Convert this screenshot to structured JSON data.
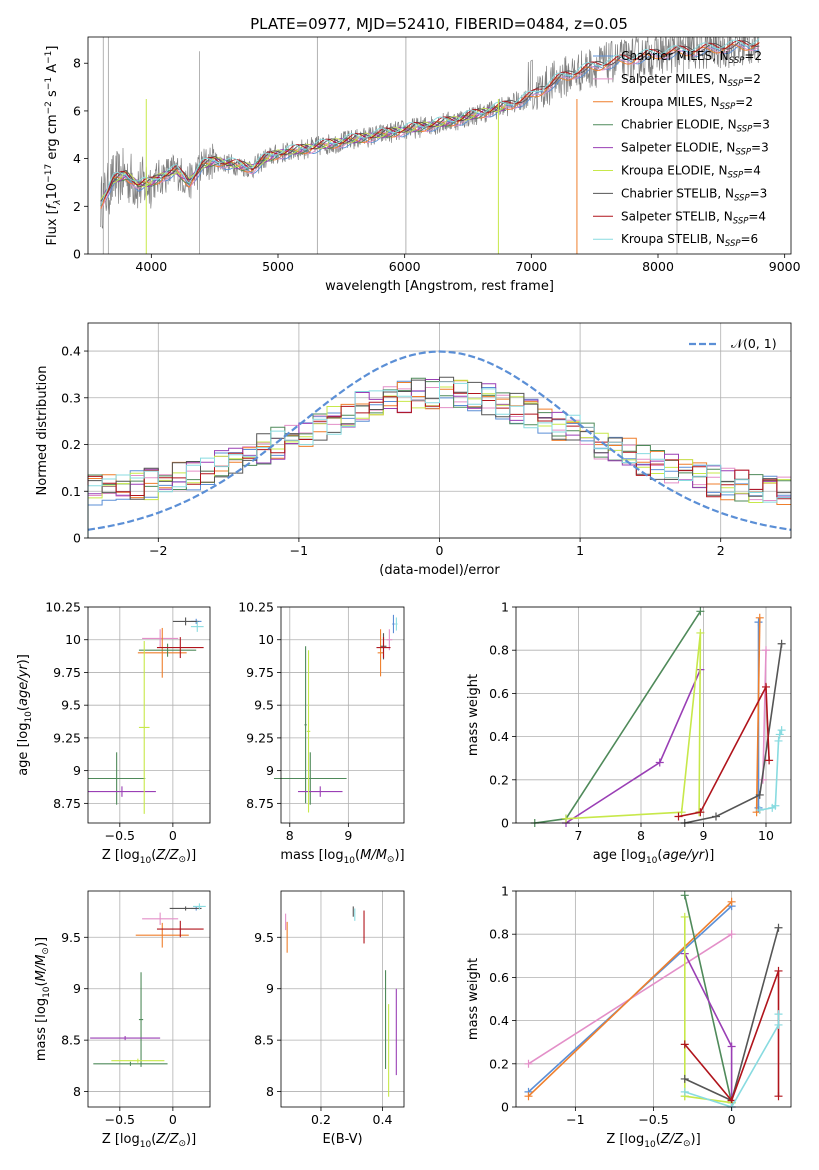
{
  "figure": {
    "title": "PLATE=0977, MJD=52410, FIBERID=0484, z=0.05",
    "colors": {
      "data_grey": "#808080",
      "chabrier_miles": "#5b8fd6",
      "salpeter_miles": "#e38fc8",
      "kroupa_miles": "#ef7f2c",
      "chabrier_elodie": "#4f8a5a",
      "salpeter_elodie": "#9a3fb5",
      "kroupa_elodie": "#c7e84a",
      "chabrier_stelib": "#555555",
      "salpeter_stelib": "#b0141c",
      "kroupa_stelib": "#88dbe0",
      "normal_curve": "#5b8fd6"
    }
  },
  "chart_data": [
    {
      "id": "spectrum",
      "type": "line",
      "xlabel": "wavelength [Angstrom, rest frame]",
      "ylabel": "Flux [f_λ 10^-17 erg cm^-2 s^-1 A^-1]",
      "xlim": [
        3500,
        9050
      ],
      "ylim": [
        0,
        9.1
      ],
      "xticks": [
        4000,
        5000,
        6000,
        7000,
        8000,
        9000
      ],
      "yticks": [
        0,
        2,
        4,
        6,
        8
      ],
      "grid": false,
      "legend_position": "right",
      "legend": [
        "Chabrier MILES, N_SSP=2",
        "Salpeter MILES, N_SSP=2",
        "Kroupa MILES, N_SSP=2",
        "Chabrier ELODIE, N_SSP=3",
        "Salpeter ELODIE, N_SSP=3",
        "Kroupa ELODIE, N_SSP=4",
        "Chabrier STELIB, N_SSP=3",
        "Salpeter STELIB, N_SSP=4",
        "Kroupa STELIB, N_SSP=6"
      ],
      "continuum_x": [
        3600,
        3700,
        3800,
        3900,
        4000,
        4100,
        4200,
        4300,
        4400,
        4500,
        4600,
        4700,
        4800,
        4900,
        5000,
        5200,
        5400,
        5600,
        5800,
        6000,
        6200,
        6400,
        6600,
        6800,
        7000,
        7200,
        7400,
        7600,
        7800,
        8000,
        8200,
        8400,
        8600,
        8800
      ],
      "continuum_y": [
        2.1,
        3.1,
        3.3,
        2.9,
        3.0,
        3.3,
        3.5,
        3.0,
        3.7,
        3.9,
        3.8,
        3.7,
        3.6,
        4.0,
        4.2,
        4.4,
        4.6,
        4.8,
        5.0,
        5.2,
        5.4,
        5.6,
        5.9,
        6.2,
        6.6,
        7.3,
        7.7,
        8.0,
        8.2,
        8.4,
        8.5,
        8.6,
        8.7,
        8.8
      ]
    },
    {
      "id": "residuals",
      "type": "histogram",
      "xlabel": "(data-model)/error",
      "ylabel": "Normed distribution",
      "xlim": [
        -2.5,
        2.5
      ],
      "ylim": [
        0,
        0.46
      ],
      "xticks": [
        -2,
        -1,
        0,
        1,
        2
      ],
      "yticks": [
        0.0,
        0.1,
        0.2,
        0.3,
        0.4
      ],
      "grid": true,
      "legend": [
        "𝒩(0, 1)"
      ],
      "legend_position": "top-right",
      "normal": {
        "mean": 0,
        "std": 1
      }
    },
    {
      "id": "age_vs_Z",
      "type": "errorbar",
      "xlabel": "Z [log10(Z/Z⊙)]",
      "ylabel": "age [log10(age/yr)]",
      "xlim": [
        -0.8,
        0.35
      ],
      "ylim": [
        8.6,
        10.25
      ],
      "xticks": [
        -0.5,
        0.0
      ],
      "yticks": [
        8.75,
        9.0,
        9.25,
        9.5,
        9.75,
        10.0,
        10.25
      ],
      "grid": true,
      "points": [
        {
          "series": "chabrier_miles",
          "x": 0.22,
          "y": 10.14,
          "xerr": 0.05,
          "yerr": 0.02
        },
        {
          "series": "salpeter_miles",
          "x": -0.12,
          "y": 10.01,
          "xerr": 0.17,
          "yerr": 0.07
        },
        {
          "series": "kroupa_miles",
          "x": -0.1,
          "y": 9.9,
          "xerr": 0.23,
          "yerr": 0.19
        },
        {
          "series": "chabrier_elodie",
          "x": -0.53,
          "y": 8.94,
          "xerr": 0.27,
          "yerr": 0.2
        },
        {
          "series": "chabrier_elodie_old",
          "x": -0.05,
          "y": 9.92,
          "xerr": 0.27,
          "yerr": 0.05
        },
        {
          "series": "salpeter_elodie",
          "x": -0.48,
          "y": 8.84,
          "xerr": 0.32,
          "yerr": 0.04
        },
        {
          "series": "kroupa_elodie",
          "x": -0.27,
          "y": 9.33,
          "xerr": 0.05,
          "yerr": 0.66
        },
        {
          "series": "chabrier_stelib",
          "x": 0.12,
          "y": 10.14,
          "xerr": 0.12,
          "yerr": 0.03
        },
        {
          "series": "salpeter_stelib",
          "x": 0.07,
          "y": 9.94,
          "xerr": 0.22,
          "yerr": 0.08
        },
        {
          "series": "kroupa_stelib",
          "x": 0.23,
          "y": 10.1,
          "xerr": 0.06,
          "yerr": 0.04
        }
      ]
    },
    {
      "id": "age_vs_mass",
      "type": "errorbar",
      "xlabel": "mass [log10(M/M⊙)]",
      "ylabel": "",
      "xlim": [
        7.85,
        9.95
      ],
      "ylim": [
        8.6,
        10.25
      ],
      "xticks": [
        8,
        9
      ],
      "yticks": [
        8.75,
        9.0,
        9.25,
        9.5,
        9.75,
        10.0,
        10.25
      ],
      "grid": true,
      "points": [
        {
          "series": "chabrier_miles",
          "x": 9.77,
          "y": 10.12,
          "xerr": 0.02,
          "yerr": 0.07
        },
        {
          "series": "salpeter_miles",
          "x": 9.7,
          "y": 10.0,
          "xerr": 0.05,
          "yerr": 0.08
        },
        {
          "series": "kroupa_miles",
          "x": 9.55,
          "y": 9.9,
          "xerr": 0.05,
          "yerr": 0.18
        },
        {
          "series": "chabrier_elodie",
          "x": 8.35,
          "y": 8.94,
          "xerr": 0.62,
          "yerr": 0.2
        },
        {
          "series": "chabrier_elodie_old",
          "x": 8.27,
          "y": 9.35,
          "xerr": 0.02,
          "yerr": 0.6
        },
        {
          "series": "salpeter_elodie",
          "x": 8.52,
          "y": 8.84,
          "xerr": 0.38,
          "yerr": 0.04
        },
        {
          "series": "kroupa_elodie",
          "x": 8.32,
          "y": 9.3,
          "xerr": 0.03,
          "yerr": 0.62
        },
        {
          "series": "chabrier_stelib",
          "x": 9.6,
          "y": 9.95,
          "xerr": 0.05,
          "yerr": 0.1
        },
        {
          "series": "salpeter_stelib",
          "x": 9.6,
          "y": 9.94,
          "xerr": 0.12,
          "yerr": 0.08
        },
        {
          "series": "kroupa_stelib",
          "x": 9.82,
          "y": 10.12,
          "xerr": 0.02,
          "yerr": 0.05
        }
      ]
    },
    {
      "id": "massweight_vs_age",
      "type": "line",
      "xlabel": "age [log10(age/yr)]",
      "ylabel": "mass weight",
      "xlim": [
        6.0,
        10.4
      ],
      "ylim": [
        0,
        1.0
      ],
      "xticks": [
        7,
        8,
        9,
        10
      ],
      "yticks": [
        0.0,
        0.2,
        0.4,
        0.6,
        0.8,
        1.0
      ],
      "grid": true,
      "series": [
        {
          "key": "chabrier_miles",
          "x": [
            9.88,
            9.88
          ],
          "y": [
            0.07,
            0.93
          ]
        },
        {
          "key": "salpeter_miles",
          "x": [
            9.95,
            10.0
          ],
          "y": [
            0.2,
            0.8
          ]
        },
        {
          "key": "kroupa_miles",
          "x": [
            9.85,
            9.9
          ],
          "y": [
            0.05,
            0.95
          ]
        },
        {
          "key": "chabrier_elodie",
          "x": [
            6.3,
            6.8,
            8.95
          ],
          "y": [
            0.0,
            0.02,
            0.98
          ]
        },
        {
          "key": "salpeter_elodie",
          "x": [
            6.8,
            8.3,
            8.95
          ],
          "y": [
            0.0,
            0.28,
            0.71
          ]
        },
        {
          "key": "kroupa_elodie",
          "x": [
            6.8,
            8.65,
            8.95,
            8.93
          ],
          "y": [
            0.02,
            0.05,
            0.88,
            0.05
          ]
        },
        {
          "key": "chabrier_stelib",
          "x": [
            8.7,
            9.2,
            9.9,
            10.25
          ],
          "y": [
            0.0,
            0.03,
            0.13,
            0.83
          ]
        },
        {
          "key": "salpeter_stelib",
          "x": [
            8.6,
            8.95,
            10.0,
            10.05
          ],
          "y": [
            0.03,
            0.05,
            0.63,
            0.29
          ]
        },
        {
          "key": "kroupa_stelib",
          "x": [
            9.9,
            10.1,
            10.15,
            10.2,
            10.22,
            10.25
          ],
          "y": [
            0.06,
            0.07,
            0.08,
            0.38,
            0.41,
            0.43
          ]
        }
      ]
    },
    {
      "id": "mass_vs_Z",
      "type": "errorbar",
      "xlabel": "Z [log10(Z/Z⊙)]",
      "ylabel": "mass [log10(M/M⊙)]",
      "xlim": [
        -0.8,
        0.35
      ],
      "ylim": [
        7.85,
        9.95
      ],
      "xticks": [
        -0.5,
        0.0
      ],
      "yticks": [
        8.0,
        8.5,
        9.0,
        9.5
      ],
      "grid": true,
      "points": [
        {
          "series": "chabrier_miles",
          "x": 0.22,
          "y": 9.78,
          "xerr": 0.05,
          "yerr": 0.02
        },
        {
          "series": "salpeter_miles",
          "x": -0.12,
          "y": 9.68,
          "xerr": 0.17,
          "yerr": 0.06
        },
        {
          "series": "kroupa_miles",
          "x": -0.1,
          "y": 9.52,
          "xerr": 0.25,
          "yerr": 0.12
        },
        {
          "series": "chabrier_elodie",
          "x": -0.3,
          "y": 8.7,
          "xerr": 0.02,
          "yerr": 0.46
        },
        {
          "series": "chabrier_elodie_old",
          "x": -0.4,
          "y": 8.27,
          "xerr": 0.35,
          "yerr": 0.02
        },
        {
          "series": "salpeter_elodie",
          "x": -0.45,
          "y": 8.52,
          "xerr": 0.33,
          "yerr": 0.02
        },
        {
          "series": "kroupa_elodie",
          "x": -0.33,
          "y": 8.3,
          "xerr": 0.25,
          "yerr": 0.02
        },
        {
          "series": "chabrier_stelib",
          "x": 0.12,
          "y": 9.78,
          "xerr": 0.15,
          "yerr": 0.02
        },
        {
          "series": "salpeter_stelib",
          "x": 0.07,
          "y": 9.58,
          "xerr": 0.22,
          "yerr": 0.08
        },
        {
          "series": "kroupa_stelib",
          "x": 0.25,
          "y": 9.8,
          "xerr": 0.06,
          "yerr": 0.03
        }
      ]
    },
    {
      "id": "mass_vs_EBV",
      "type": "errorbar",
      "xlabel": "E(B-V)",
      "ylabel": "",
      "xlim": [
        0.07,
        0.47
      ],
      "ylim": [
        7.85,
        9.95
      ],
      "xticks": [
        0.2,
        0.4
      ],
      "yticks": [
        8.0,
        8.5,
        9.0,
        9.5
      ],
      "grid": true,
      "points": [
        {
          "series": "salpeter_miles",
          "x": 0.085,
          "y": 9.65,
          "xerr": 0.0,
          "yerr": 0.08
        },
        {
          "series": "kroupa_miles",
          "x": 0.09,
          "y": 9.5,
          "xerr": 0.0,
          "yerr": 0.15
        },
        {
          "series": "chabrier_stelib",
          "x": 0.305,
          "y": 9.75,
          "xerr": 0.0,
          "yerr": 0.05
        },
        {
          "series": "kroupa_stelib",
          "x": 0.31,
          "y": 9.72,
          "xerr": 0.0,
          "yerr": 0.06
        },
        {
          "series": "salpeter_stelib",
          "x": 0.34,
          "y": 9.6,
          "xerr": 0.0,
          "yerr": 0.16
        },
        {
          "series": "chabrier_elodie",
          "x": 0.41,
          "y": 8.7,
          "xerr": 0.0,
          "yerr": 0.48
        },
        {
          "series": "kroupa_elodie",
          "x": 0.42,
          "y": 8.4,
          "xerr": 0.0,
          "yerr": 0.45
        },
        {
          "series": "salpeter_elodie",
          "x": 0.445,
          "y": 8.58,
          "xerr": 0.0,
          "yerr": 0.42
        }
      ]
    },
    {
      "id": "massweight_vs_Z",
      "type": "line",
      "xlabel": "Z [log10(Z/Z⊙)]",
      "ylabel": "mass weight",
      "xlim": [
        -1.38,
        0.38
      ],
      "ylim": [
        0,
        1.0
      ],
      "xticks": [
        -1.0,
        -0.5,
        0.0
      ],
      "yticks": [
        0.0,
        0.2,
        0.4,
        0.6,
        0.8,
        1.0
      ],
      "grid": true,
      "series": [
        {
          "key": "chabrier_miles",
          "x": [
            -1.3,
            0.0
          ],
          "y": [
            0.07,
            0.93
          ]
        },
        {
          "key": "salpeter_miles",
          "x": [
            -1.3,
            0.0
          ],
          "y": [
            0.2,
            0.8
          ]
        },
        {
          "key": "kroupa_miles",
          "x": [
            -1.3,
            0.0
          ],
          "y": [
            0.05,
            0.95
          ]
        },
        {
          "key": "chabrier_elodie",
          "x": [
            -0.3,
            0.0
          ],
          "y": [
            0.98,
            0.02
          ]
        },
        {
          "key": "salpeter_elodie",
          "x": [
            -0.3,
            0.0,
            0.0
          ],
          "y": [
            0.71,
            0.28,
            0.0
          ]
        },
        {
          "key": "kroupa_elodie",
          "x": [
            -0.3,
            -0.3,
            0.0,
            -0.3
          ],
          "y": [
            0.88,
            0.05,
            0.02,
            0.05
          ]
        },
        {
          "key": "chabrier_stelib",
          "x": [
            -0.3,
            0.0,
            0.3
          ],
          "y": [
            0.13,
            0.03,
            0.83
          ]
        },
        {
          "key": "salpeter_stelib",
          "x": [
            -0.3,
            0.0,
            0.3,
            0.3
          ],
          "y": [
            0.29,
            0.03,
            0.63,
            0.05
          ]
        },
        {
          "key": "kroupa_stelib",
          "x": [
            -0.3,
            0.0,
            0.3,
            0.3
          ],
          "y": [
            0.07,
            0.0,
            0.38,
            0.43
          ]
        }
      ]
    }
  ]
}
